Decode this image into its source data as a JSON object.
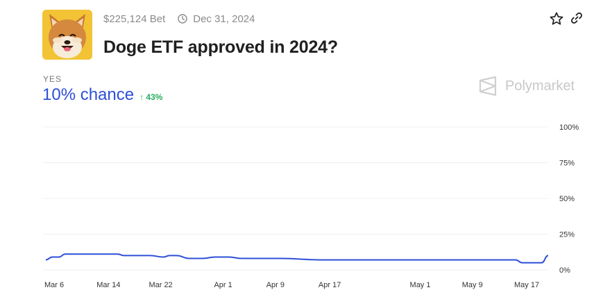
{
  "market": {
    "volume": "$225,124 Bet",
    "end_date": "Dec 31, 2024",
    "title": "Doge ETF approved in 2024?",
    "icon": "shiba-inu-dog-image"
  },
  "actions": {
    "favorite_icon": "star-icon",
    "share_icon": "link-icon"
  },
  "outcome": {
    "label": "YES",
    "chance": "10% chance",
    "change": "↑ 43%"
  },
  "brand": {
    "name": "Polymarket"
  },
  "colors": {
    "accent": "#2d4fd8",
    "positive": "#27ae60",
    "grid": "#efefef",
    "muted": "#8a8a8a"
  },
  "chart_data": {
    "type": "line",
    "title": "",
    "xlabel": "",
    "ylabel": "",
    "ylim": [
      0,
      100
    ],
    "y_ticks": [
      "0%",
      "25%",
      "50%",
      "75%",
      "100%"
    ],
    "y_tick_values": [
      0,
      25,
      50,
      75,
      100
    ],
    "x_tick_labels": [
      "Mar 6",
      "Mar 14",
      "Mar 22",
      "Apr 1",
      "Apr 9",
      "Apr 17",
      "May 1",
      "May 9",
      "May 17"
    ],
    "grid": true,
    "series": [
      {
        "color": "#2d4fd8",
        "x": [
          "Mar 6",
          "Mar 7",
          "Mar 8",
          "Mar 9",
          "Mar 10",
          "Mar 12",
          "Mar 14",
          "Mar 17",
          "Mar 18",
          "Mar 20",
          "Mar 21",
          "Mar 22",
          "Mar 24",
          "Mar 25",
          "Mar 26",
          "Mar 28",
          "Mar 30",
          "Apr 1",
          "Apr 3",
          "Apr 5",
          "Apr 6",
          "Apr 9",
          "Apr 11",
          "Apr 17",
          "May 1",
          "May 9",
          "May 17",
          "May 18",
          "May 20",
          "May 21",
          "May 22"
        ],
        "values": [
          7,
          9,
          9,
          11,
          11,
          11,
          11,
          11,
          10,
          10,
          10,
          10,
          9,
          10,
          10,
          8,
          8,
          9,
          9,
          8,
          8,
          8,
          8,
          7,
          7,
          7,
          7,
          5,
          5,
          5,
          10
        ]
      }
    ]
  }
}
